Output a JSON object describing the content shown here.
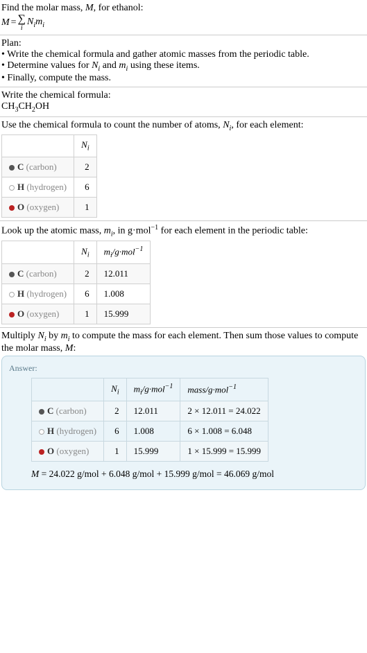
{
  "step1": {
    "intro": "Find the molar mass, ",
    "introVar": "M",
    "introEnd": ", for ethanol:"
  },
  "plan": {
    "title": "Plan:",
    "b1": "• Write the chemical formula and gather atomic masses from the periodic table.",
    "b2a": "• Determine values for ",
    "b2b": " and ",
    "b2c": " using these items.",
    "b3": "• Finally, compute the mass."
  },
  "chem": {
    "line1": "Write the chemical formula:"
  },
  "count": {
    "line1a": "Use the chemical formula to count the number of atoms, ",
    "line1b": ", for each element:",
    "headN": "N",
    "rows": [
      {
        "sym": "C",
        "name": " (carbon)",
        "n": "2",
        "colorClass": "c-carbon"
      },
      {
        "sym": "H",
        "name": " (hydrogen)",
        "n": "6",
        "colorClass": "c-hydrogen"
      },
      {
        "sym": "O",
        "name": " (oxygen)",
        "n": "1",
        "colorClass": "c-oxygen"
      }
    ]
  },
  "mass": {
    "line1a": "Look up the atomic mass, ",
    "line1b": ", in g·mol",
    "line1c": " for each element in the periodic table:",
    "rows": [
      {
        "sym": "C",
        "name": " (carbon)",
        "n": "2",
        "m": "12.011",
        "colorClass": "c-carbon"
      },
      {
        "sym": "H",
        "name": " (hydrogen)",
        "n": "6",
        "m": "1.008",
        "colorClass": "c-hydrogen"
      },
      {
        "sym": "O",
        "name": " (oxygen)",
        "n": "1",
        "m": "15.999",
        "colorClass": "c-oxygen"
      }
    ]
  },
  "mult": {
    "line1a": "Multiply ",
    "line1b": " by ",
    "line1c": " to compute the mass for each element. Then sum those values to compute the molar mass, ",
    "line1d": ":"
  },
  "answer": {
    "label": "Answer:",
    "headMass": "mass/g·mol",
    "rows": [
      {
        "sym": "C",
        "name": " (carbon)",
        "n": "2",
        "m": "12.011",
        "calc": "2 × 12.011 = 24.022",
        "colorClass": "c-carbon"
      },
      {
        "sym": "H",
        "name": " (hydrogen)",
        "n": "6",
        "m": "1.008",
        "calc": "6 × 1.008 = 6.048",
        "colorClass": "c-hydrogen"
      },
      {
        "sym": "O",
        "name": " (oxygen)",
        "n": "1",
        "m": "15.999",
        "calc": "1 × 15.999 = 15.999",
        "colorClass": "c-oxygen"
      }
    ],
    "eqA": "M",
    "eqB": " = 24.022 g/mol + 6.048 g/mol + 15.999 g/mol = 46.069 g/mol"
  }
}
